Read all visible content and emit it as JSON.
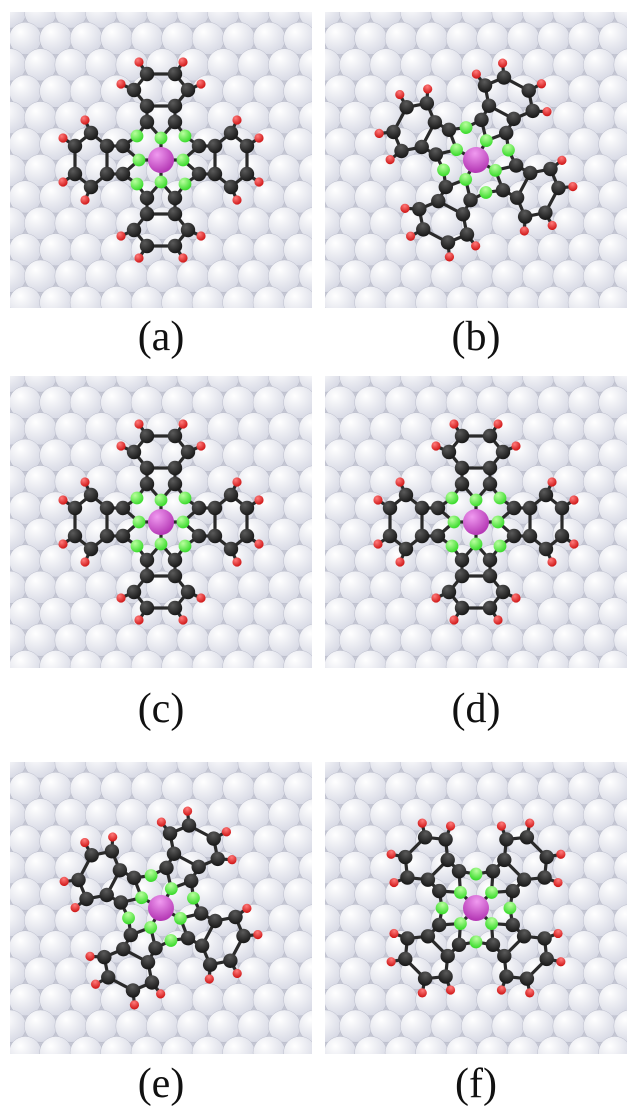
{
  "panels": [
    {
      "caption": "(a)",
      "adsorbate": "phthalocyanine-molecule",
      "substrate": "close-packed-metal-surface",
      "orientation": "aligned"
    },
    {
      "caption": "(b)",
      "adsorbate": "phthalocyanine-molecule",
      "substrate": "close-packed-metal-surface",
      "orientation": "rotated"
    },
    {
      "caption": "(c)",
      "adsorbate": "phthalocyanine-molecule",
      "substrate": "close-packed-metal-surface",
      "orientation": "aligned"
    },
    {
      "caption": "(d)",
      "adsorbate": "phthalocyanine-molecule",
      "substrate": "close-packed-metal-surface",
      "orientation": "aligned"
    },
    {
      "caption": "(e)",
      "adsorbate": "phthalocyanine-molecule",
      "substrate": "close-packed-metal-surface",
      "orientation": "rotated"
    },
    {
      "caption": "(f)",
      "adsorbate": "phthalocyanine-molecule",
      "substrate": "close-packed-metal-surface",
      "orientation": "diagonal"
    }
  ],
  "colors": {
    "background": "#ffffff",
    "substrate_atom": "#d9dbe6",
    "carbon": "#1a1a1a",
    "nitrogen": "#3ddc2f",
    "hydrogen": "#d11a1a",
    "central_metal": "#b63ab6"
  }
}
